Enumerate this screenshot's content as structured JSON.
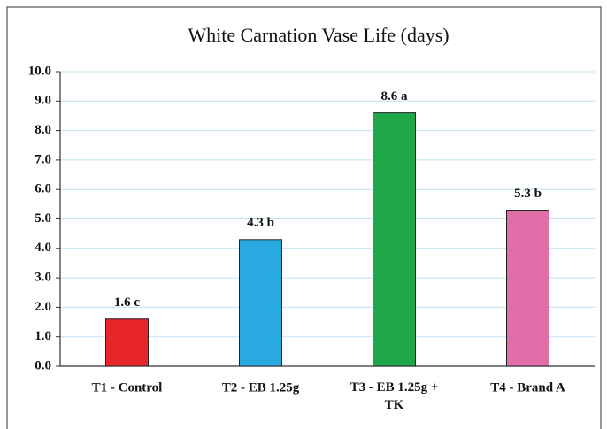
{
  "chart_data": {
    "type": "bar",
    "title": "White Carnation Vase Life (days)",
    "categories": [
      "T1 - Control",
      "T2 - EB 1.25g",
      "T3 - EB 1.25g + TK",
      "T4 - Brand A"
    ],
    "values": [
      1.6,
      4.3,
      8.6,
      5.3
    ],
    "value_labels": [
      "1.6 c",
      "4.3 b",
      "8.6 a",
      "5.3 b"
    ],
    "colors": [
      "#e8262a",
      "#29abe2",
      "#20a74a",
      "#e06ea8"
    ],
    "ylim": [
      0,
      10
    ],
    "yticks": [
      {
        "value": 0,
        "label": "0.0"
      },
      {
        "value": 1,
        "label": "1.0"
      },
      {
        "value": 2,
        "label": "2.0"
      },
      {
        "value": 3,
        "label": "3.0"
      },
      {
        "value": 4,
        "label": "4.0"
      },
      {
        "value": 5,
        "label": "5.0"
      },
      {
        "value": 6,
        "label": "6.0"
      },
      {
        "value": 7,
        "label": "7.0"
      },
      {
        "value": 8,
        "label": "8.0"
      },
      {
        "value": 9,
        "label": "9.0"
      },
      {
        "value": 10,
        "label": "10.0"
      }
    ],
    "grid": true
  }
}
